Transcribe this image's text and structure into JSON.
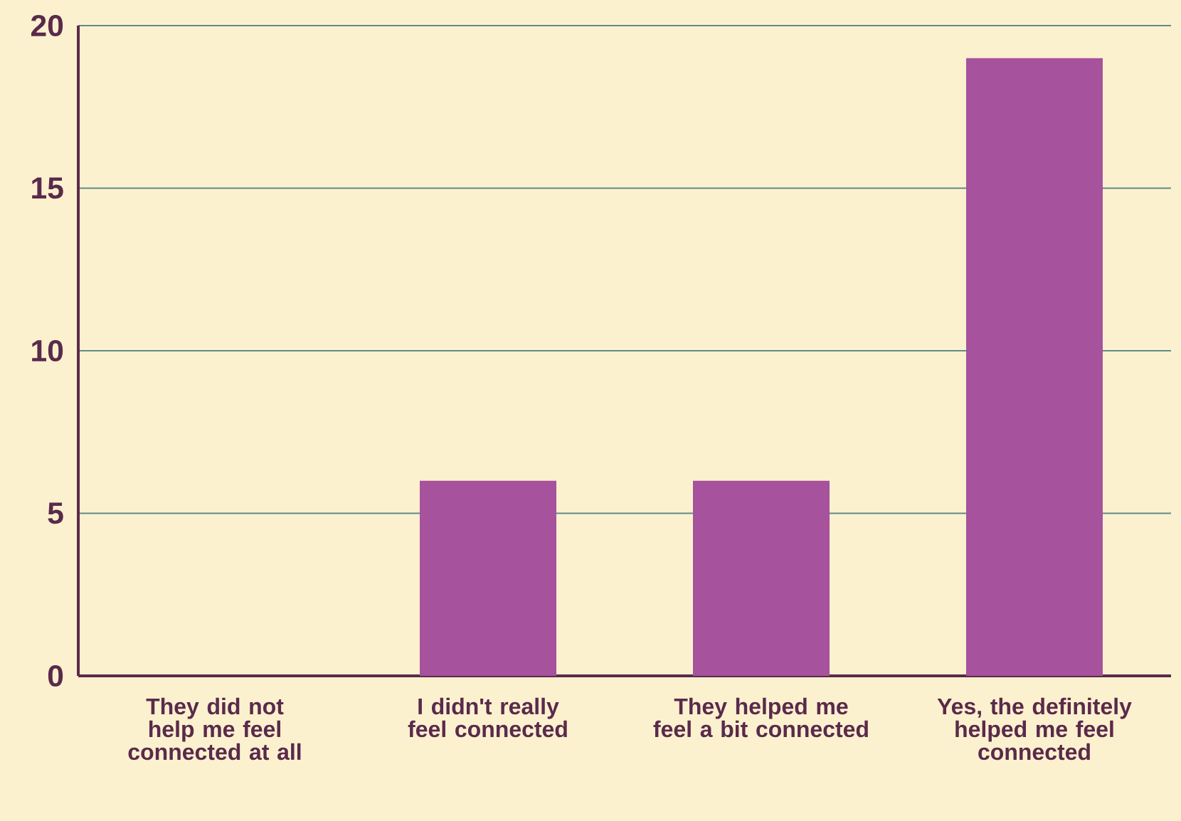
{
  "chart_data": {
    "type": "bar",
    "categories": [
      "They did not help me feel connected at all",
      "I didn't really feel connected",
      "They helped me feel a bit connected",
      "Yes, the definitely helped me feel connected"
    ],
    "values": [
      0,
      6,
      6,
      19
    ],
    "color": "#a6529c",
    "ylim": [
      0,
      20
    ],
    "yticks": [
      0,
      5,
      10,
      15,
      20
    ],
    "grid": "y"
  }
}
